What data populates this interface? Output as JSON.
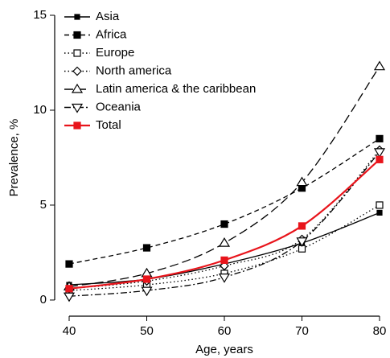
{
  "chart_data": {
    "type": "line",
    "x_label": "Age, years",
    "y_label": "Prevalence, %",
    "x": [
      40,
      50,
      60,
      70,
      80
    ],
    "xlim": [
      40,
      80
    ],
    "xticks": [
      40,
      50,
      60,
      70,
      80
    ],
    "ylim": [
      -0.85,
      15
    ],
    "yticks": [
      0,
      5,
      10,
      15
    ],
    "legend": "upper left",
    "series": [
      {
        "name": "Asia",
        "color": "#000000",
        "dash": "solid",
        "marker": "filled-square-small",
        "values": [
          0.8,
          1.1,
          1.9,
          3.0,
          4.6
        ]
      },
      {
        "name": "Africa",
        "color": "#000000",
        "dash": "dashed",
        "marker": "filled-square",
        "values": [
          1.9,
          2.75,
          4.0,
          5.9,
          8.5
        ]
      },
      {
        "name": "Europe",
        "color": "#000000",
        "dash": "dotted",
        "marker": "open-square",
        "values": [
          0.5,
          0.8,
          1.4,
          2.7,
          5.0
        ]
      },
      {
        "name": "North america",
        "color": "#000000",
        "dash": "dotted",
        "marker": "diamond",
        "values": [
          0.6,
          1.0,
          1.8,
          3.2,
          7.9
        ]
      },
      {
        "name": "Latin america & the caribbean",
        "color": "#000000",
        "dash": "long-dash",
        "marker": "triangle-up",
        "values": [
          0.7,
          1.4,
          3.0,
          6.2,
          12.3
        ]
      },
      {
        "name": "Oceania",
        "color": "#000000",
        "dash": "dash-dot",
        "marker": "triangle-down",
        "values": [
          0.2,
          0.5,
          1.2,
          3.1,
          7.8
        ]
      },
      {
        "name": "Total",
        "color": "#e8141b",
        "dash": "solid",
        "marker": "filled-square",
        "values": [
          0.6,
          1.1,
          2.1,
          3.9,
          7.4
        ]
      }
    ]
  }
}
